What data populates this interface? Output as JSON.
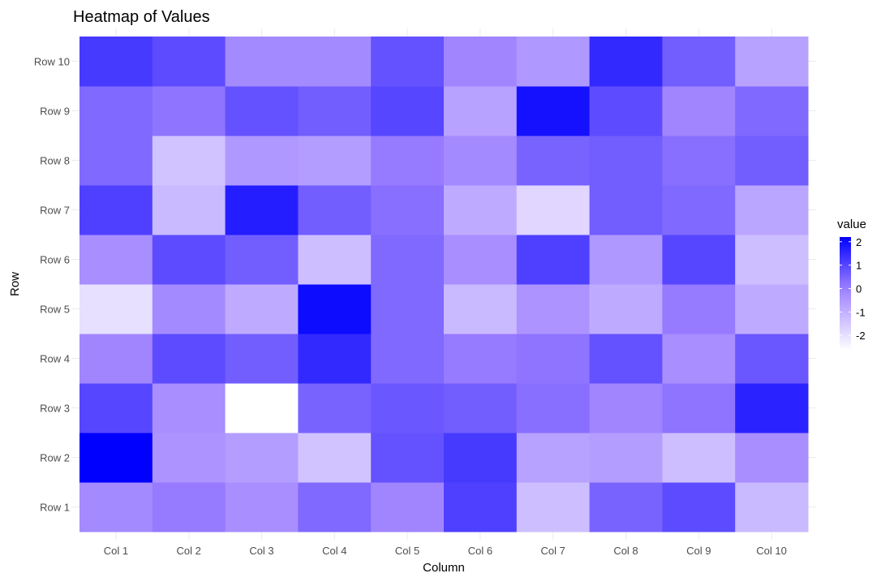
{
  "chart_data": {
    "type": "heatmap",
    "title": "Heatmap of Values",
    "xlabel": "Column",
    "ylabel": "Row",
    "x_categories": [
      "Col 1",
      "Col 2",
      "Col 3",
      "Col 4",
      "Col 5",
      "Col 6",
      "Col 7",
      "Col 8",
      "Col 9",
      "Col 10"
    ],
    "y_categories": [
      "Row 1",
      "Row 2",
      "Row 3",
      "Row 4",
      "Row 5",
      "Row 6",
      "Row 7",
      "Row 8",
      "Row 9",
      "Row 10"
    ],
    "values": [
      [
        -0.2,
        0.1,
        -0.3,
        0.4,
        -0.1,
        1.1,
        -1.3,
        0.5,
        0.9,
        -1.2
      ],
      [
        2.2,
        -0.4,
        -0.6,
        -1.4,
        0.8,
        1.2,
        -0.7,
        -0.6,
        -1.3,
        -0.3
      ],
      [
        1.0,
        -0.3,
        -2.65,
        0.5,
        0.7,
        0.6,
        0.3,
        -0.1,
        0.2,
        1.6
      ],
      [
        -0.1,
        0.9,
        0.6,
        1.5,
        0.4,
        0.1,
        0.2,
        0.8,
        -0.3,
        0.7
      ],
      [
        -2.0,
        -0.2,
        -0.9,
        2.0,
        0.4,
        -1.2,
        -0.4,
        -0.9,
        0.1,
        -0.9
      ],
      [
        -0.3,
        0.9,
        0.6,
        -1.3,
        0.4,
        -0.3,
        1.1,
        -0.5,
        1.0,
        -1.3
      ],
      [
        1.1,
        -1.2,
        1.7,
        0.6,
        0.3,
        -0.9,
        -1.8,
        0.6,
        0.4,
        -0.8
      ],
      [
        0.4,
        -1.4,
        -0.5,
        -0.6,
        0.1,
        -0.2,
        0.5,
        0.6,
        0.3,
        0.6
      ],
      [
        0.4,
        0.2,
        0.8,
        0.6,
        1.0,
        -0.7,
        1.9,
        0.9,
        -0.1,
        0.4
      ],
      [
        1.2,
        0.9,
        -0.2,
        -0.2,
        0.8,
        -0.1,
        -0.5,
        1.5,
        0.6,
        -0.7
      ]
    ],
    "color_scale": {
      "low": "#ffffff",
      "mid": "#9d80ff",
      "high": "#0000ff",
      "range": [
        -2.65,
        2.2
      ]
    },
    "legend": {
      "title": "value",
      "ticks": [
        "2",
        "1",
        "0",
        "-1",
        "-2"
      ],
      "tick_values": [
        2,
        1,
        0,
        -1,
        -2
      ],
      "placement": "right"
    },
    "grid": true
  }
}
